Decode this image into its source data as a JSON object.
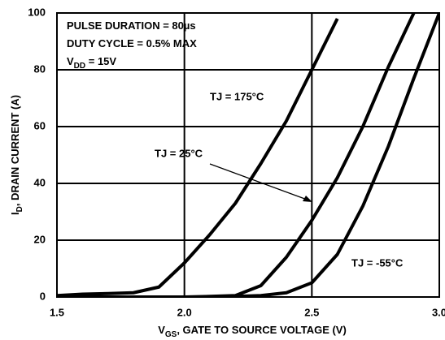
{
  "chart_data": {
    "type": "line",
    "x_label": {
      "main": "V",
      "sub": "GS",
      "rest": ", GATE TO SOURCE VOLTAGE (V)"
    },
    "y_label": {
      "main": "I",
      "sub": "D",
      "rest": ", DRAIN CURRENT (A)"
    },
    "annotations": [
      {
        "main": "PULSE DURATION = 80µs"
      },
      {
        "main": "DUTY CYCLE = 0.5% MAX"
      },
      {
        "main": "V",
        "sub": "DD",
        "rest": " = 15V"
      }
    ],
    "x": [
      1.5,
      1.6,
      1.7,
      1.8,
      1.9,
      2.0,
      2.1,
      2.2,
      2.3,
      2.4,
      2.5,
      2.6,
      2.7,
      2.8,
      2.9,
      3.0
    ],
    "series": [
      {
        "name": "TJ = 175°C",
        "color": "#000000",
        "values": [
          0.5,
          1,
          1.2,
          1.5,
          3.5,
          12,
          22,
          33,
          47,
          62,
          80,
          98,
          null,
          null,
          null,
          null
        ]
      },
      {
        "name": "TJ = 25°C",
        "color": "#000000",
        "values": [
          0,
          0,
          0,
          0,
          0,
          0,
          0.2,
          0.5,
          4,
          14,
          27,
          42,
          60,
          81,
          100,
          null
        ]
      },
      {
        "name": "TJ = -55°C",
        "color": "#000000",
        "values": [
          0,
          0,
          0,
          0,
          0,
          0,
          0,
          0.2,
          0.5,
          1.5,
          5,
          15,
          32,
          53,
          77,
          100
        ]
      }
    ],
    "xlim": [
      1.5,
      3.0
    ],
    "ylim": [
      0,
      100
    ],
    "xticks": [
      1.5,
      {
        "value": 2,
        "label": "2.0"
      },
      2.5,
      {
        "value": 3,
        "label": "3.0"
      }
    ],
    "yticks": [
      0,
      20,
      40,
      60,
      80,
      100
    ],
    "grid": true
  }
}
